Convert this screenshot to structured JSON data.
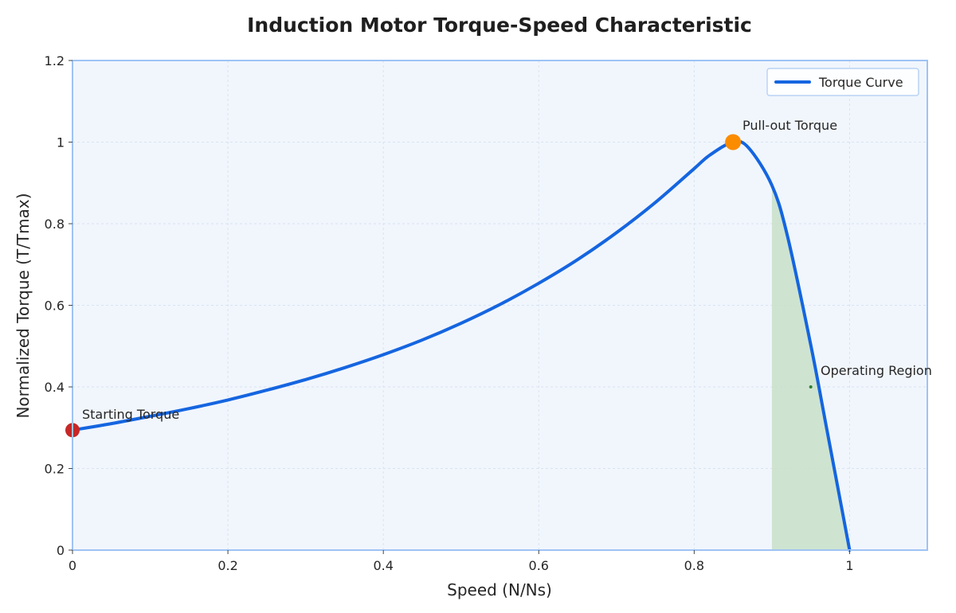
{
  "chart_data": {
    "type": "line",
    "title": "Induction Motor Torque-Speed Characteristic",
    "xlabel": "Speed (N/Ns)",
    "ylabel": "Normalized Torque (T/Tmax)",
    "xlim": [
      0,
      1.1
    ],
    "ylim": [
      0,
      1.2
    ],
    "x_ticks": [
      "0",
      "0.2",
      "0.4",
      "0.6",
      "0.8",
      "1"
    ],
    "y_ticks": [
      "0",
      "0.2",
      "0.4",
      "0.6",
      "0.8",
      "1",
      "1.2"
    ],
    "grid": true,
    "legend_position": "top-right",
    "series": [
      {
        "name": "Torque Curve",
        "color": "#1565e0",
        "x": [
          0,
          0.05,
          0.1,
          0.15,
          0.2,
          0.25,
          0.3,
          0.35,
          0.4,
          0.45,
          0.5,
          0.55,
          0.6,
          0.65,
          0.7,
          0.75,
          0.8,
          0.82,
          0.85,
          0.87,
          0.9,
          0.92,
          0.95,
          0.97,
          1.0
        ],
        "y": [
          0.294,
          0.31,
          0.328,
          0.347,
          0.368,
          0.392,
          0.418,
          0.447,
          0.479,
          0.515,
          0.556,
          0.602,
          0.654,
          0.712,
          0.778,
          0.852,
          0.935,
          0.968,
          1.0,
          0.986,
          0.894,
          0.77,
          0.503,
          0.303,
          0.0
        ]
      }
    ],
    "shaded_region": {
      "x_start": 0.9,
      "x_end": 1.0,
      "color": "#c8e0c8"
    },
    "annotations": [
      {
        "label": "Starting Torque",
        "x": 0,
        "y": 0.294,
        "marker_color": "#c62828"
      },
      {
        "label": "Pull-out Torque",
        "x": 0.85,
        "y": 1.0,
        "marker_color": "#fb8c00"
      },
      {
        "label": "Operating Region",
        "x": 0.95,
        "y": 0.4,
        "marker_color": "#2e7d32"
      }
    ]
  }
}
